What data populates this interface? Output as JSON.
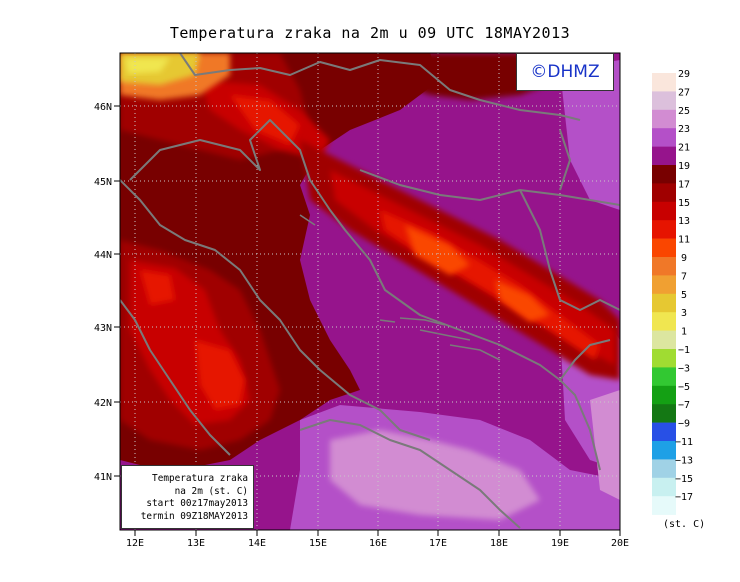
{
  "title": "Temperatura zraka na 2m u 09 UTC 18MAY2013",
  "copyright": "©DHMZ",
  "info_box": {
    "line1": "Temperatura zraka",
    "line2": "na 2m (st. C)",
    "line3": "start 00z17may2013",
    "line4": "termin 09Z18MAY2013"
  },
  "map": {
    "lon_range": [
      11.75,
      20.0
    ],
    "lat_range": [
      40.25,
      46.75
    ],
    "lon_ticks": [
      "12E",
      "13E",
      "14E",
      "15E",
      "16E",
      "17E",
      "18E",
      "19E",
      "20E"
    ],
    "lat_ticks": [
      "41N",
      "42N",
      "43N",
      "44N",
      "45N",
      "46N"
    ],
    "grid": true
  },
  "legend": {
    "units": "(st. C)",
    "labels": [
      "29",
      "27",
      "25",
      "23",
      "21",
      "19",
      "17",
      "15",
      "13",
      "11",
      "9",
      "7",
      "5",
      "3",
      "1",
      "−1",
      "−3",
      "−5",
      "−7",
      "−9",
      "−11",
      "−13",
      "−15",
      "−17"
    ],
    "colors": [
      "#fae6dc",
      "#dcc0dc",
      "#d28cd2",
      "#b450c8",
      "#96148c",
      "#780000",
      "#a00000",
      "#c80000",
      "#e61400",
      "#fa4600",
      "#f07828",
      "#f0a032",
      "#e6c832",
      "#f0e650",
      "#dce6a0",
      "#a0dc32",
      "#32c832",
      "#14a014",
      "#147814",
      "#2850e6",
      "#1ea0e6",
      "#a0d2e6",
      "#c8f0f0",
      "#e6fafa"
    ]
  }
}
